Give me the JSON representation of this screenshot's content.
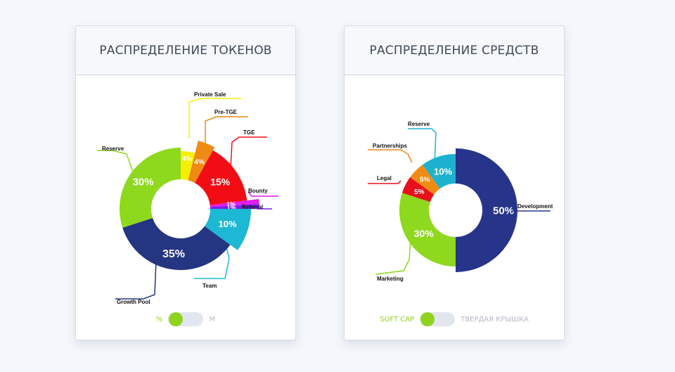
{
  "colors": {
    "accent_green": "#8fd31f",
    "inactive_text": "#b3b9c4"
  },
  "chart_data": [
    {
      "type": "donut",
      "title": "РАСПРЕДЕЛЕНИЕ ТОКЕНОВ",
      "slices": [
        {
          "label": "Private Sale",
          "value": 4,
          "value_label": "4%",
          "color": "#f5f000"
        },
        {
          "label": "Pre-TGE",
          "value": 4,
          "value_label": "4%",
          "color": "#ef8a12"
        },
        {
          "label": "TGE",
          "value": 15,
          "value_label": "15%",
          "color": "#f20d14"
        },
        {
          "label": "Bounty",
          "value": 1,
          "value_label": "1%",
          "color": "#e21af0"
        },
        {
          "label": "Referral",
          "value": 1,
          "value_label": "1%",
          "color": "#7a1fe8"
        },
        {
          "label": "Team",
          "value": 10,
          "value_label": "10%",
          "color": "#1cb8d4"
        },
        {
          "label": "Growth Pool",
          "value": 35,
          "value_label": "35%",
          "color": "#243581"
        },
        {
          "label": "Reserve",
          "value": 30,
          "value_label": "30%",
          "color": "#8ed81e"
        }
      ],
      "toggle": {
        "left_label": "%",
        "right_label": "M",
        "active": "left"
      }
    },
    {
      "type": "donut",
      "title": "РАСПРЕДЕЛЕНИЕ СРЕДСТВ",
      "slices": [
        {
          "label": "Development",
          "value": 50,
          "value_label": "50%",
          "color": "#26358a"
        },
        {
          "label": "Marketing",
          "value": 30,
          "value_label": "30%",
          "color": "#8ed81e"
        },
        {
          "label": "Legal",
          "value": 5,
          "value_label": "5%",
          "color": "#e8101a"
        },
        {
          "label": "Partnerships",
          "value": 5,
          "value_label": "5%",
          "color": "#ef8a12"
        },
        {
          "label": "Reserve",
          "value": 10,
          "value_label": "10%",
          "color": "#1cb2cf"
        }
      ],
      "toggle": {
        "left_label": "SOFT CAP",
        "right_label": "ТВЕРДАЯ КРЫШКА",
        "active": "left"
      }
    }
  ]
}
